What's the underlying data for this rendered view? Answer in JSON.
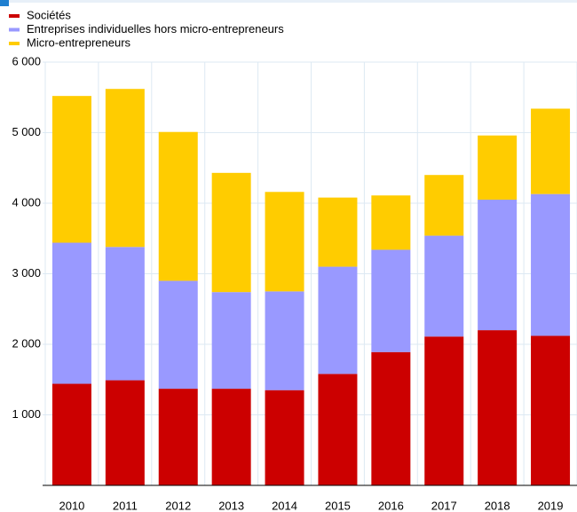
{
  "chart_data": {
    "type": "stacked_bar",
    "categories": [
      "2010",
      "2011",
      "2012",
      "2013",
      "2014",
      "2015",
      "2016",
      "2017",
      "2018",
      "2019"
    ],
    "series": [
      {
        "name": "Sociétés",
        "color": "#cc0000",
        "values": [
          1440,
          1490,
          1370,
          1370,
          1350,
          1580,
          1890,
          2110,
          2200,
          2120
        ]
      },
      {
        "name": "Entreprises individuelles hors micro-entrepreneurs",
        "color": "#9999ff",
        "values": [
          2000,
          1890,
          1530,
          1370,
          1400,
          1520,
          1450,
          1430,
          1850,
          2010
        ]
      },
      {
        "name": "Micro-entrepreneurs",
        "color": "#ffcc00",
        "values": [
          2080,
          2240,
          2110,
          1690,
          1410,
          980,
          770,
          860,
          910,
          1210
        ]
      }
    ],
    "ylim": [
      0,
      6000
    ],
    "yticks": [
      {
        "value": 1000,
        "label": "1 000"
      },
      {
        "value": 2000,
        "label": "2 000"
      },
      {
        "value": 3000,
        "label": "3 000"
      },
      {
        "value": 4000,
        "label": "4 000"
      },
      {
        "value": 5000,
        "label": "5 000"
      },
      {
        "value": 6000,
        "label": "6 000"
      }
    ],
    "grid": true
  }
}
